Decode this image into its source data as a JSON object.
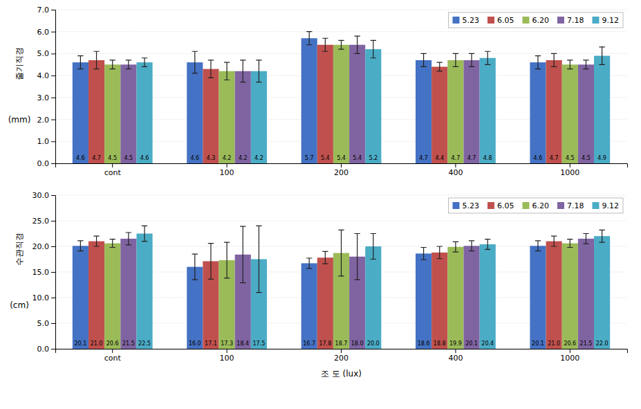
{
  "chart_data": [
    {
      "type": "bar",
      "categories": [
        "cont",
        "100",
        "200",
        "400",
        "1000"
      ],
      "series": [
        {
          "name": "5.23",
          "color": "#4472C4",
          "values": [
            4.6,
            4.6,
            5.7,
            4.7,
            4.6
          ],
          "errors": [
            0.3,
            0.5,
            0.3,
            0.3,
            0.3
          ]
        },
        {
          "name": "6.05",
          "color": "#C0504D",
          "values": [
            4.7,
            4.3,
            5.4,
            4.4,
            4.7
          ],
          "errors": [
            0.4,
            0.4,
            0.3,
            0.2,
            0.3
          ]
        },
        {
          "name": "6.20",
          "color": "#9BBB59",
          "values": [
            4.5,
            4.2,
            5.4,
            4.7,
            4.5
          ],
          "errors": [
            0.2,
            0.4,
            0.2,
            0.3,
            0.2
          ]
        },
        {
          "name": "7.18",
          "color": "#8064A2",
          "values": [
            4.5,
            4.2,
            5.4,
            4.7,
            4.5
          ],
          "errors": [
            0.2,
            0.5,
            0.4,
            0.3,
            0.2
          ]
        },
        {
          "name": "9.12",
          "color": "#4BACC6",
          "values": [
            4.6,
            4.2,
            5.2,
            4.8,
            4.9
          ],
          "errors": [
            0.2,
            0.5,
            0.4,
            0.3,
            0.4
          ]
        }
      ],
      "ylabel": [
        "줄기직경",
        "(mm)"
      ],
      "ylim": [
        0,
        7.0
      ],
      "yticks": [
        {
          "value": 0,
          "label": "0.0"
        },
        {
          "value": 1,
          "label": "1.0"
        },
        {
          "value": 2,
          "label": "2.0"
        },
        {
          "value": 3,
          "label": "3.0"
        },
        {
          "value": 4,
          "label": "4.0"
        },
        {
          "value": 5,
          "label": "5.0"
        },
        {
          "value": 6,
          "label": "6.0"
        },
        {
          "value": 7,
          "label": "7.0"
        }
      ],
      "grid": true,
      "legend": "upper right",
      "data_labels": true
    },
    {
      "type": "bar",
      "categories": [
        "cont",
        "100",
        "200",
        "400",
        "1000"
      ],
      "series": [
        {
          "name": "5.23",
          "color": "#4472C4",
          "values": [
            20.1,
            16.0,
            16.7,
            18.6,
            20.1
          ],
          "value_labels": [
            "20.1",
            "16.0",
            "16.7",
            "18.6",
            "20.1"
          ],
          "errors": [
            1.0,
            2.5,
            1.0,
            1.2,
            1.0
          ]
        },
        {
          "name": "6.05",
          "color": "#C0504D",
          "values": [
            21.0,
            17.1,
            17.8,
            18.8,
            21.0
          ],
          "value_labels": [
            "21.0",
            "17.1",
            "17.8",
            "18.8",
            "21.0"
          ],
          "errors": [
            1.0,
            3.5,
            1.2,
            1.2,
            1.0
          ]
        },
        {
          "name": "6.20",
          "color": "#9BBB59",
          "values": [
            20.6,
            17.3,
            18.7,
            19.9,
            20.6
          ],
          "value_labels": [
            "20.6",
            "17.3",
            "18.7",
            "19.9",
            "20.6"
          ],
          "errors": [
            0.8,
            3.5,
            4.5,
            1.0,
            0.8
          ]
        },
        {
          "name": "7.18",
          "color": "#8064A2",
          "values": [
            21.5,
            18.4,
            18.0,
            20.1,
            21.5
          ],
          "value_labels": [
            "21.5",
            "18.4",
            "18.0",
            "20.1",
            "21.5"
          ],
          "errors": [
            1.2,
            5.5,
            4.5,
            1.0,
            1.0
          ]
        },
        {
          "name": "9.12",
          "color": "#4BACC6",
          "values": [
            22.5,
            17.5,
            20.0,
            20.4,
            22.0
          ],
          "value_labels": [
            "22.5",
            "17.5",
            "20.0",
            "20.4",
            "22.0"
          ],
          "errors": [
            1.5,
            6.5,
            2.5,
            1.0,
            1.2
          ]
        }
      ],
      "xlabel": "조 도 (lux)",
      "ylabel": [
        "수관직경",
        "(cm)"
      ],
      "ylim": [
        0,
        30.0
      ],
      "yticks": [
        {
          "value": 0,
          "label": "0.0"
        },
        {
          "value": 5,
          "label": "5.0"
        },
        {
          "value": 10,
          "label": "10.0"
        },
        {
          "value": 15,
          "label": "15.0"
        },
        {
          "value": 20,
          "label": "20.0"
        },
        {
          "value": 25,
          "label": "25.0"
        },
        {
          "value": 30,
          "label": "30.0"
        }
      ],
      "grid": true,
      "legend": "upper right",
      "data_labels": true
    }
  ]
}
